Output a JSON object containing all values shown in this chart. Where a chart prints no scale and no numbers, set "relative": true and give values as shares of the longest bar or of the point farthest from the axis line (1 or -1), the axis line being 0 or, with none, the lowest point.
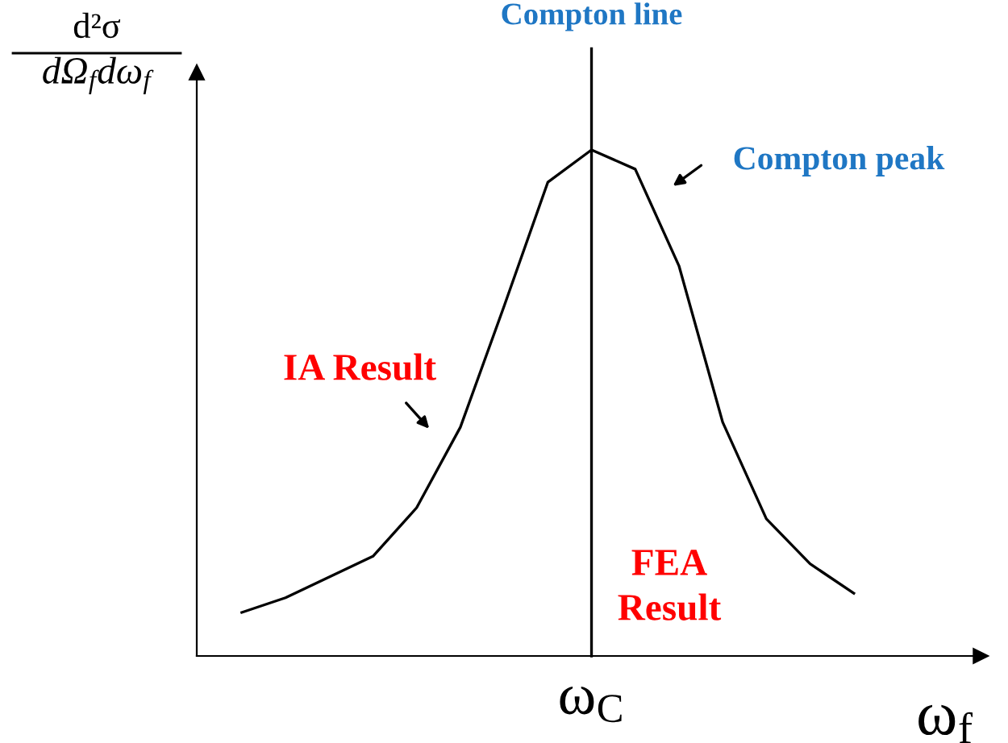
{
  "chart_data": {
    "type": "line",
    "relative": true,
    "categories": [
      null,
      null,
      null,
      null,
      null,
      null,
      null,
      null,
      null,
      null,
      null,
      null,
      null,
      null,
      null
    ],
    "series": [
      {
        "color": "#000000",
        "values": [
          0.086,
          0.115,
          0.156,
          0.197,
          0.293,
          0.452,
          0.691,
          0.936,
          1,
          0.962,
          0.771,
          0.462,
          0.271,
          0.182,
          0.124
        ]
      }
    ],
    "xlabel": "ω$_{f}$",
    "ylabel": "d²σ\ndΩ$_{f}$dω$_{f}$",
    "annotations": [
      "Compton peak",
      "IA Result",
      "FEA\nResult",
      "ω$_{C}$",
      "Compton line"
    ],
    "marker": "none",
    "line_style": "solid"
  }
}
